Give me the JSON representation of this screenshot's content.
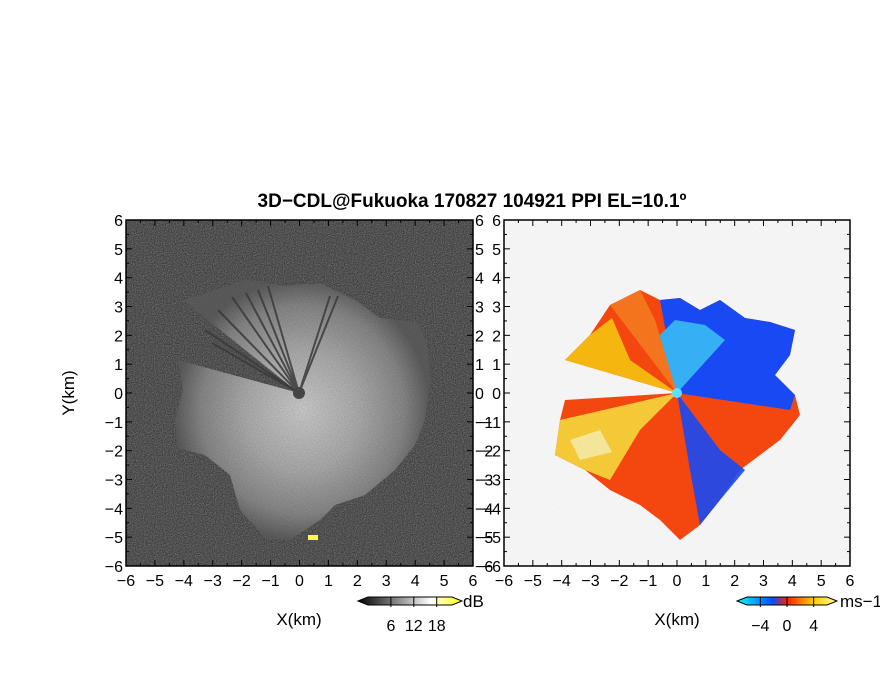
{
  "chart_data": {
    "title": "3D−CDL@Fukuoka 170827 104921 PPI EL=10.1º",
    "panels": [
      {
        "type": "heatmap",
        "field": "reflectivity",
        "xlabel": "X(km)",
        "ylabel": "Y(km)",
        "xlim": [
          -6,
          6
        ],
        "ylim": [
          -6,
          6
        ],
        "xticks": [
          "−6",
          "−5",
          "−4",
          "−3",
          "−2",
          "−1",
          "0",
          "1",
          "2",
          "3",
          "4",
          "5",
          "6"
        ],
        "yticks": [
          "6",
          "5",
          "4",
          "3",
          "2",
          "1",
          "0",
          "−1",
          "−2",
          "−3",
          "−4",
          "−5",
          "−6"
        ],
        "colorbar": {
          "unit": "dB",
          "ticks": [
            "6",
            "12",
            "18"
          ],
          "tick_values": [
            6,
            12,
            18
          ],
          "range": [
            0,
            22
          ],
          "colors": [
            "#000000",
            "#ffffff",
            "#ffff00"
          ]
        }
      },
      {
        "type": "heatmap",
        "field": "radial_velocity",
        "xlabel": "X(km)",
        "xlim": [
          -6,
          6
        ],
        "ylim": [
          -6,
          6
        ],
        "xticks": [
          "−6",
          "−5",
          "−4",
          "−3",
          "−2",
          "−1",
          "0",
          "1",
          "2",
          "3",
          "4",
          "5",
          "6"
        ],
        "yticks": [
          "6",
          "5",
          "4",
          "3",
          "2",
          "1",
          "0",
          "−1",
          "−2",
          "−3",
          "−4",
          "−5",
          "−6"
        ],
        "colorbar": {
          "unit": "ms−1",
          "ticks": [
            "−4",
            "0",
            "4"
          ],
          "tick_values": [
            -4,
            0,
            4
          ],
          "range": [
            -6,
            6
          ],
          "colors": [
            "#00ffff",
            "#0050ff",
            "#ff2000",
            "#ffc800",
            "#ffff80"
          ]
        }
      }
    ]
  }
}
